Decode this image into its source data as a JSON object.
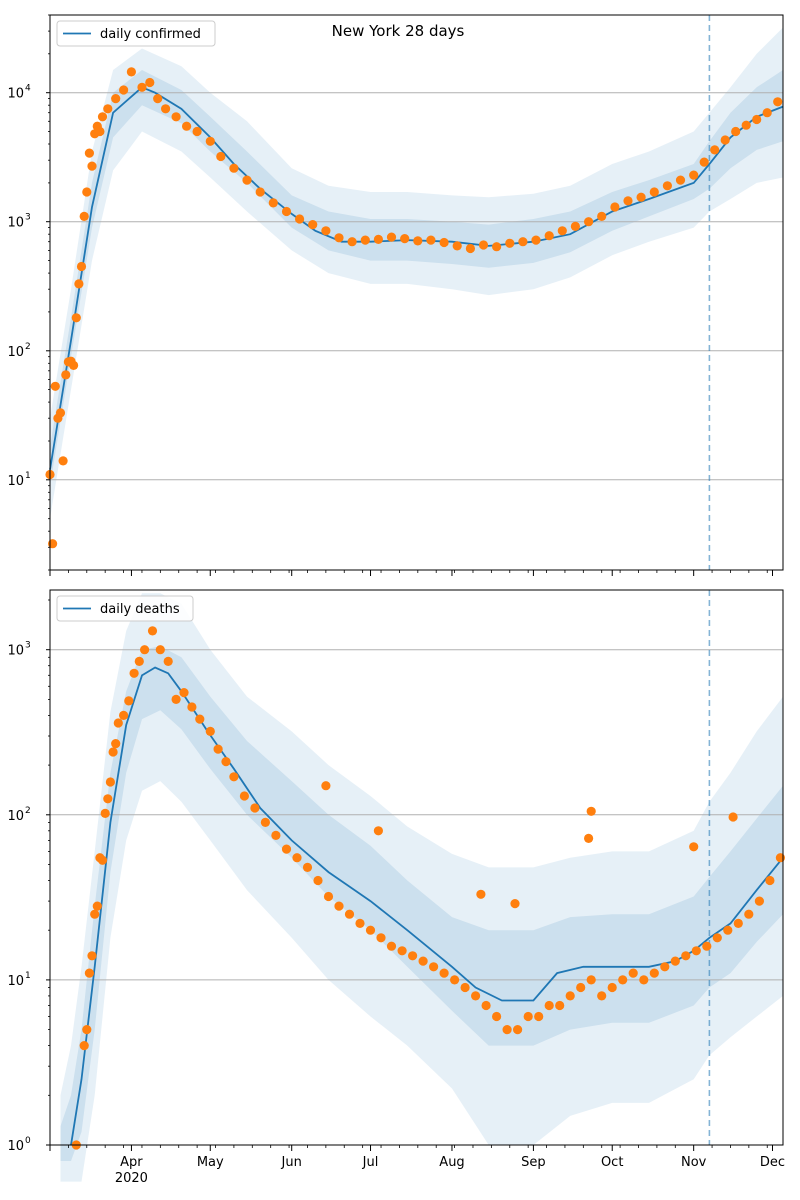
{
  "chart_data": [
    {
      "type": "line",
      "title": "New York 28 days",
      "yscale": "log",
      "ylim": [
        2,
        40000
      ],
      "xlim": [
        "2020-03-01",
        "2020-12-05"
      ],
      "grid": "y-major",
      "legend": {
        "placement": "top-left",
        "entries": [
          "daily confirmed"
        ]
      },
      "y_ticks": [
        {
          "value": 10,
          "label": "10"
        },
        {
          "value": 100,
          "label": "10"
        },
        {
          "value": 1000,
          "label": "10"
        },
        {
          "value": 10000,
          "label": "10"
        }
      ],
      "y_tick_exponents": [
        "1",
        "2",
        "3",
        "4"
      ],
      "x_ticks": [],
      "vline_date": "2020-11-07",
      "series": [
        {
          "name": "daily confirmed",
          "kind": "line",
          "color": "#1f77b4",
          "x": [
            "2020-03-01",
            "2020-03-09",
            "2020-03-17",
            "2020-03-25",
            "2020-04-05",
            "2020-04-10",
            "2020-04-20",
            "2020-05-01",
            "2020-05-10",
            "2020-05-20",
            "2020-06-01",
            "2020-06-10",
            "2020-06-20",
            "2020-07-01",
            "2020-07-15",
            "2020-08-01",
            "2020-08-15",
            "2020-09-01",
            "2020-09-15",
            "2020-10-01",
            "2020-10-15",
            "2020-11-01",
            "2020-11-07",
            "2020-11-15",
            "2020-11-25",
            "2020-12-05"
          ],
          "y": [
            12,
            120,
            1300,
            7000,
            11000,
            10000,
            7500,
            4500,
            2800,
            1800,
            1150,
            850,
            700,
            700,
            720,
            700,
            650,
            700,
            800,
            1200,
            1500,
            2000,
            2800,
            4500,
            6500,
            7800
          ]
        },
        {
          "name": "",
          "kind": "band",
          "color": "#1f77b4",
          "opacity": 0.11,
          "x": [
            "2020-03-01",
            "2020-03-09",
            "2020-03-17",
            "2020-03-25",
            "2020-04-05",
            "2020-04-20",
            "2020-05-01",
            "2020-05-15",
            "2020-06-01",
            "2020-06-15",
            "2020-07-01",
            "2020-07-15",
            "2020-08-01",
            "2020-08-15",
            "2020-09-01",
            "2020-09-15",
            "2020-10-01",
            "2020-10-15",
            "2020-11-01",
            "2020-11-07",
            "2020-11-15",
            "2020-11-25",
            "2020-12-05"
          ],
          "low": [
            5,
            50,
            500,
            2500,
            5000,
            3500,
            2200,
            1200,
            600,
            400,
            330,
            330,
            300,
            270,
            300,
            370,
            550,
            700,
            900,
            1200,
            1500,
            2000,
            2200
          ],
          "high": [
            30,
            300,
            3500,
            15000,
            22000,
            16000,
            10000,
            6000,
            2600,
            1900,
            1700,
            1700,
            1600,
            1550,
            1650,
            1900,
            2800,
            3500,
            5000,
            7000,
            11000,
            20000,
            32000
          ]
        },
        {
          "name": "",
          "kind": "band",
          "color": "#1f77b4",
          "opacity": 0.13,
          "x": [
            "2020-03-01",
            "2020-03-09",
            "2020-03-17",
            "2020-03-25",
            "2020-04-05",
            "2020-04-20",
            "2020-05-01",
            "2020-05-15",
            "2020-06-01",
            "2020-06-15",
            "2020-07-01",
            "2020-07-15",
            "2020-08-01",
            "2020-08-15",
            "2020-09-01",
            "2020-09-15",
            "2020-10-01",
            "2020-10-15",
            "2020-11-01",
            "2020-11-07",
            "2020-11-15",
            "2020-11-25",
            "2020-12-05"
          ],
          "low": [
            9,
            90,
            900,
            4500,
            8000,
            5800,
            3500,
            2000,
            900,
            600,
            500,
            500,
            470,
            440,
            480,
            580,
            850,
            1100,
            1500,
            1800,
            2600,
            3600,
            4200
          ],
          "high": [
            18,
            180,
            2000,
            10000,
            15000,
            10500,
            6500,
            3500,
            1600,
            1200,
            1050,
            1050,
            1000,
            950,
            1050,
            1200,
            1700,
            2100,
            2800,
            4200,
            7000,
            11000,
            15000
          ]
        }
      ],
      "points": {
        "name": "",
        "color": "#ff7f0e",
        "x": [
          "2020-03-01",
          "2020-03-02",
          "2020-03-03",
          "2020-03-04",
          "2020-03-05",
          "2020-03-06",
          "2020-03-07",
          "2020-03-08",
          "2020-03-09",
          "2020-03-10",
          "2020-03-11",
          "2020-03-12",
          "2020-03-13",
          "2020-03-14",
          "2020-03-15",
          "2020-03-16",
          "2020-03-17",
          "2020-03-18",
          "2020-03-19",
          "2020-03-20",
          "2020-03-21",
          "2020-03-23",
          "2020-03-26",
          "2020-03-29",
          "2020-04-01",
          "2020-04-05",
          "2020-04-08",
          "2020-04-11",
          "2020-04-14",
          "2020-04-18",
          "2020-04-22",
          "2020-04-26",
          "2020-05-01",
          "2020-05-05",
          "2020-05-10",
          "2020-05-15",
          "2020-05-20",
          "2020-05-25",
          "2020-05-30",
          "2020-06-04",
          "2020-06-09",
          "2020-06-14",
          "2020-06-19",
          "2020-06-24",
          "2020-06-29",
          "2020-07-04",
          "2020-07-09",
          "2020-07-14",
          "2020-07-19",
          "2020-07-24",
          "2020-07-29",
          "2020-08-03",
          "2020-08-08",
          "2020-08-13",
          "2020-08-18",
          "2020-08-23",
          "2020-08-28",
          "2020-09-02",
          "2020-09-07",
          "2020-09-12",
          "2020-09-17",
          "2020-09-22",
          "2020-09-27",
          "2020-10-02",
          "2020-10-07",
          "2020-10-12",
          "2020-10-17",
          "2020-10-22",
          "2020-10-27",
          "2020-11-01",
          "2020-11-05",
          "2020-11-09",
          "2020-11-13",
          "2020-11-17",
          "2020-11-21",
          "2020-11-25",
          "2020-11-29",
          "2020-12-03"
        ],
        "y": [
          11,
          3.2,
          53,
          30,
          33,
          14,
          65,
          82,
          83,
          77,
          180,
          330,
          450,
          1100,
          1700,
          3400,
          2700,
          4800,
          5500,
          5000,
          6500,
          7500,
          9000,
          10500,
          14500,
          11000,
          12000,
          9000,
          7500,
          6500,
          5500,
          5000,
          4200,
          3200,
          2600,
          2100,
          1700,
          1400,
          1200,
          1050,
          950,
          850,
          750,
          700,
          720,
          730,
          760,
          740,
          710,
          720,
          690,
          650,
          620,
          660,
          640,
          680,
          700,
          720,
          780,
          850,
          920,
          1000,
          1100,
          1300,
          1450,
          1550,
          1700,
          1900,
          2100,
          2300,
          2900,
          3600,
          4300,
          5000,
          5600,
          6200,
          7000,
          8500
        ]
      }
    },
    {
      "type": "line",
      "title": "",
      "yscale": "log",
      "ylim": [
        1,
        2300
      ],
      "xlim": [
        "2020-03-01",
        "2020-12-05"
      ],
      "grid": "y-major",
      "legend": {
        "placement": "top-left",
        "entries": [
          "daily deaths"
        ]
      },
      "y_ticks": [
        {
          "value": 1,
          "label": "10"
        },
        {
          "value": 10,
          "label": "10"
        },
        {
          "value": 100,
          "label": "10"
        },
        {
          "value": 1000,
          "label": "10"
        }
      ],
      "y_tick_exponents": [
        "0",
        "1",
        "2",
        "3"
      ],
      "x_ticks": [
        {
          "date": "2020-04-01",
          "label": "Apr",
          "sublabel": "2020"
        },
        {
          "date": "2020-05-01",
          "label": "May",
          "sublabel": ""
        },
        {
          "date": "2020-06-01",
          "label": "Jun",
          "sublabel": ""
        },
        {
          "date": "2020-07-01",
          "label": "Jul",
          "sublabel": ""
        },
        {
          "date": "2020-08-01",
          "label": "Aug",
          "sublabel": ""
        },
        {
          "date": "2020-09-01",
          "label": "Sep",
          "sublabel": ""
        },
        {
          "date": "2020-10-01",
          "label": "Oct",
          "sublabel": ""
        },
        {
          "date": "2020-11-01",
          "label": "Nov",
          "sublabel": ""
        },
        {
          "date": "2020-12-01",
          "label": "Dec",
          "sublabel": ""
        }
      ],
      "vline_date": "2020-11-07",
      "series": [
        {
          "name": "daily deaths",
          "kind": "line",
          "color": "#1f77b4",
          "x": [
            "2020-03-09",
            "2020-03-13",
            "2020-03-18",
            "2020-03-24",
            "2020-03-30",
            "2020-04-05",
            "2020-04-10",
            "2020-04-15",
            "2020-04-20",
            "2020-04-30",
            "2020-05-10",
            "2020-05-20",
            "2020-06-01",
            "2020-06-15",
            "2020-07-01",
            "2020-07-15",
            "2020-08-01",
            "2020-08-10",
            "2020-08-20",
            "2020-09-01",
            "2020-09-10",
            "2020-09-20",
            "2020-10-01",
            "2020-10-15",
            "2020-10-25",
            "2020-11-01",
            "2020-11-07",
            "2020-11-15",
            "2020-11-25",
            "2020-12-05"
          ],
          "y": [
            1,
            2.5,
            12,
            90,
            350,
            700,
            780,
            720,
            560,
            320,
            190,
            110,
            70,
            45,
            30,
            20,
            12,
            9,
            7.5,
            7.5,
            11,
            12,
            12,
            12,
            13,
            15,
            18,
            22,
            35,
            55
          ]
        },
        {
          "name": "",
          "kind": "band",
          "color": "#1f77b4",
          "opacity": 0.11,
          "x": [
            "2020-03-05",
            "2020-03-09",
            "2020-03-13",
            "2020-03-18",
            "2020-03-24",
            "2020-03-30",
            "2020-04-05",
            "2020-04-12",
            "2020-04-20",
            "2020-05-01",
            "2020-05-15",
            "2020-06-01",
            "2020-06-15",
            "2020-07-01",
            "2020-07-15",
            "2020-08-01",
            "2020-08-15",
            "2020-09-01",
            "2020-09-15",
            "2020-10-01",
            "2020-10-15",
            "2020-11-01",
            "2020-11-07",
            "2020-11-15",
            "2020-11-25",
            "2020-12-05"
          ],
          "low": [
            0.6,
            0.6,
            0.6,
            2,
            18,
            70,
            140,
            160,
            120,
            70,
            35,
            18,
            10,
            6,
            4,
            2.2,
            1,
            1,
            1.5,
            1.8,
            1.8,
            2.5,
            3.5,
            4.5,
            6,
            8
          ],
          "high": [
            2,
            4,
            12,
            60,
            420,
            1300,
            2200,
            2200,
            1900,
            1000,
            520,
            320,
            200,
            130,
            85,
            58,
            48,
            48,
            55,
            60,
            60,
            80,
            120,
            180,
            320,
            520
          ]
        },
        {
          "name": "",
          "kind": "band",
          "color": "#1f77b4",
          "opacity": 0.13,
          "x": [
            "2020-03-05",
            "2020-03-09",
            "2020-03-13",
            "2020-03-18",
            "2020-03-24",
            "2020-03-30",
            "2020-04-05",
            "2020-04-12",
            "2020-04-20",
            "2020-05-01",
            "2020-05-15",
            "2020-06-01",
            "2020-06-15",
            "2020-07-01",
            "2020-07-15",
            "2020-08-01",
            "2020-08-15",
            "2020-09-01",
            "2020-09-15",
            "2020-10-01",
            "2020-10-15",
            "2020-11-01",
            "2020-11-07",
            "2020-11-15",
            "2020-11-25",
            "2020-12-05"
          ],
          "low": [
            0.8,
            0.8,
            1.2,
            5,
            45,
            180,
            380,
            430,
            330,
            190,
            100,
            55,
            32,
            20,
            12,
            6.5,
            4,
            4,
            5,
            5.5,
            5.5,
            7,
            9,
            11,
            17,
            25
          ],
          "high": [
            1.3,
            2,
            5,
            28,
            180,
            560,
            1000,
            1050,
            900,
            520,
            280,
            160,
            100,
            65,
            40,
            24,
            20,
            20,
            24,
            25,
            25,
            32,
            42,
            60,
            95,
            150
          ]
        }
      ],
      "points": {
        "name": "",
        "color": "#ff7f0e",
        "x": [
          "2020-03-11",
          "2020-03-14",
          "2020-03-15",
          "2020-03-16",
          "2020-03-17",
          "2020-03-18",
          "2020-03-19",
          "2020-03-20",
          "2020-03-21",
          "2020-03-22",
          "2020-03-23",
          "2020-03-24",
          "2020-03-25",
          "2020-03-26",
          "2020-03-27",
          "2020-03-29",
          "2020-03-31",
          "2020-04-02",
          "2020-04-04",
          "2020-04-06",
          "2020-04-09",
          "2020-04-12",
          "2020-04-15",
          "2020-04-18",
          "2020-04-21",
          "2020-04-24",
          "2020-04-27",
          "2020-05-01",
          "2020-05-04",
          "2020-05-07",
          "2020-05-10",
          "2020-05-14",
          "2020-05-18",
          "2020-05-22",
          "2020-05-26",
          "2020-05-30",
          "2020-06-03",
          "2020-06-07",
          "2020-06-11",
          "2020-06-15",
          "2020-06-19",
          "2020-06-23",
          "2020-06-27",
          "2020-07-01",
          "2020-07-05",
          "2020-07-09",
          "2020-07-13",
          "2020-07-17",
          "2020-07-21",
          "2020-07-25",
          "2020-07-29",
          "2020-08-02",
          "2020-08-06",
          "2020-08-10",
          "2020-08-14",
          "2020-08-18",
          "2020-08-22",
          "2020-08-26",
          "2020-08-30",
          "2020-09-03",
          "2020-09-07",
          "2020-09-11",
          "2020-09-15",
          "2020-09-19",
          "2020-09-23",
          "2020-09-27",
          "2020-10-01",
          "2020-10-05",
          "2020-10-09",
          "2020-10-13",
          "2020-10-17",
          "2020-10-21",
          "2020-10-25",
          "2020-10-29",
          "2020-11-02",
          "2020-11-06",
          "2020-11-10",
          "2020-11-14",
          "2020-11-18",
          "2020-11-22",
          "2020-11-26",
          "2020-11-30",
          "2020-12-04",
          "2020-06-14",
          "2020-07-04",
          "2020-08-12",
          "2020-08-25",
          "2020-09-23",
          "2020-09-22",
          "2020-11-01",
          "2020-11-16"
        ],
        "y": [
          1,
          4,
          5,
          11,
          14,
          25,
          28,
          55,
          53,
          102,
          125,
          158,
          240,
          270,
          360,
          400,
          490,
          720,
          850,
          1000,
          1300,
          1000,
          850,
          500,
          550,
          450,
          380,
          320,
          250,
          210,
          170,
          130,
          110,
          90,
          75,
          62,
          55,
          48,
          40,
          32,
          28,
          25,
          22,
          20,
          18,
          16,
          15,
          14,
          13,
          12,
          11,
          10,
          9,
          8,
          7,
          6,
          5,
          5,
          6,
          6,
          7,
          7,
          8,
          9,
          10,
          8,
          9,
          10,
          11,
          10,
          11,
          12,
          13,
          14,
          15,
          16,
          18,
          20,
          22,
          25,
          30,
          40,
          55,
          150,
          80,
          33,
          29,
          105,
          72,
          64,
          97
        ]
      }
    }
  ]
}
